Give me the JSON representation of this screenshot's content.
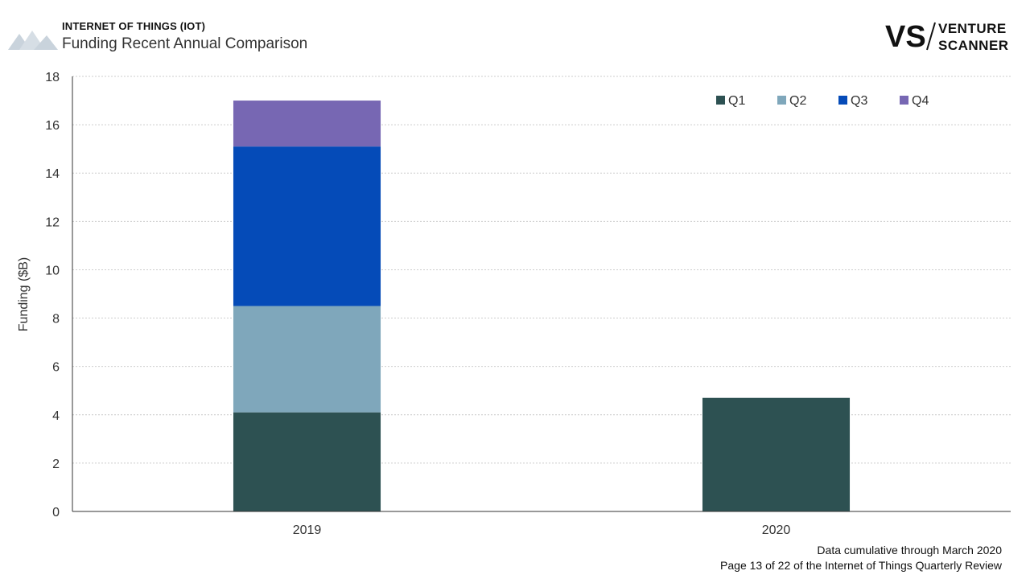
{
  "header": {
    "eyebrow": "INTERNET OF THINGS (IOT)",
    "subtitle": "Funding Recent Annual Comparison",
    "logo_mark": "VS",
    "logo_line1": "VENTURE",
    "logo_line2": "SCANNER"
  },
  "footer": {
    "note": "Data cumulative through March 2020",
    "page": "Page 13 of 22 of the Internet of Things Quarterly Review"
  },
  "colors": {
    "Q1": "#2d5152",
    "Q2": "#7fa7bb",
    "Q3": "#054bb8",
    "Q4": "#7767b3",
    "grid": "#cccccc",
    "axis": "#333333"
  },
  "chart_data": {
    "type": "bar",
    "stacked": true,
    "categories": [
      "2019",
      "2020"
    ],
    "series": [
      {
        "name": "Q1",
        "values": [
          4.1,
          4.7
        ]
      },
      {
        "name": "Q2",
        "values": [
          4.4,
          0
        ]
      },
      {
        "name": "Q3",
        "values": [
          6.6,
          0
        ]
      },
      {
        "name": "Q4",
        "values": [
          1.9,
          0
        ]
      }
    ],
    "ylabel": "Funding ($B)",
    "xlabel": "",
    "ylim": [
      0,
      18
    ],
    "yticks": [
      0,
      2,
      4,
      6,
      8,
      10,
      12,
      14,
      16,
      18
    ],
    "grid": true,
    "legend_position": "top-right"
  }
}
